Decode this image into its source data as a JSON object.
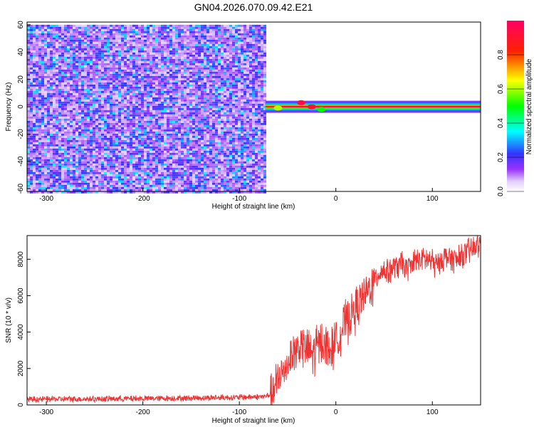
{
  "title": "GN04.2026.070.09.42.E21",
  "chart_data": [
    {
      "type": "heatmap",
      "title": "GN04.2026.070.09.42.E21",
      "xlabel": "Height of straight line (km)",
      "ylabel": "Frequency (Hz)",
      "xlim": [
        -320,
        150
      ],
      "ylim": [
        -62,
        62
      ],
      "xticks": [
        -300,
        -200,
        -100,
        0,
        100
      ],
      "yticks": [
        -60,
        -40,
        -20,
        0,
        20,
        40,
        60
      ],
      "noise_region": {
        "x_start": -320,
        "x_end": -73,
        "freq_range": [
          -62,
          60
        ],
        "amplitude_range": [
          0.1,
          0.35
        ]
      },
      "signal_band": {
        "x_start": -73,
        "x_end": 150,
        "center_freq": 0,
        "half_width_hz": 2,
        "peak_amplitude": 1.0
      },
      "signal_features": [
        {
          "x": -36,
          "freq": 3,
          "amplitude": 0.95
        },
        {
          "x": -25,
          "freq": 0,
          "amplitude": 0.9
        },
        {
          "x": -15,
          "freq": -2,
          "amplitude": 0.5
        },
        {
          "x": -60,
          "freq": -1,
          "amplitude": 0.6
        }
      ],
      "colorbar": {
        "label": "Normalized spectral amplitude",
        "range": [
          0,
          1
        ],
        "ticks": [
          "0.0",
          "0.2",
          "0.4",
          "0.6",
          "0.8"
        ],
        "colors": [
          "#ffffff",
          "#9933ff",
          "#3333ff",
          "#00ffff",
          "#00ff00",
          "#ffff00",
          "#ff0000",
          "#ff0066"
        ]
      }
    },
    {
      "type": "line",
      "xlabel": "Height of straight line (km)",
      "ylabel": "SNR (10 * v/v)",
      "xlim": [
        -320,
        150
      ],
      "ylim": [
        0,
        9300
      ],
      "xticks": [
        -300,
        -200,
        -100,
        0,
        100
      ],
      "yticks": [
        0,
        2000,
        4000,
        6000,
        8000
      ],
      "color": "#ee3333",
      "series": [
        {
          "name": "SNR",
          "x": [
            -320,
            -300,
            -250,
            -200,
            -150,
            -100,
            -75,
            -66,
            -55,
            -45,
            -35,
            -25,
            -15,
            -5,
            0,
            10,
            20,
            30,
            40,
            45,
            55,
            65,
            75,
            85,
            95,
            105,
            115,
            125,
            135,
            145,
            150
          ],
          "y": [
            300,
            320,
            330,
            350,
            380,
            420,
            450,
            600,
            1800,
            2800,
            3300,
            2800,
            3500,
            3000,
            3600,
            4500,
            5200,
            6000,
            6800,
            7300,
            7400,
            7700,
            7500,
            8000,
            8000,
            7700,
            8200,
            7900,
            8300,
            8700,
            8800
          ]
        }
      ]
    }
  ]
}
